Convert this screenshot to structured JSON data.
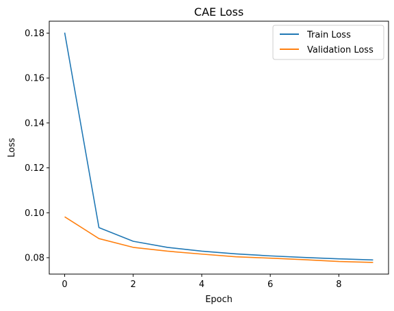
{
  "chart_data": {
    "type": "line",
    "title": "CAE Loss",
    "xlabel": "Epoch",
    "ylabel": "Loss",
    "xlim": [
      -0.45,
      9.45
    ],
    "ylim": [
      0.0727,
      0.1853
    ],
    "xticks": [
      0,
      2,
      4,
      6,
      8
    ],
    "yticks": [
      0.08,
      0.1,
      0.12,
      0.14,
      0.16,
      0.18
    ],
    "xtick_labels": [
      "0",
      "2",
      "4",
      "6",
      "8"
    ],
    "ytick_labels": [
      "0.08",
      "0.10",
      "0.12",
      "0.14",
      "0.16",
      "0.18"
    ],
    "grid": false,
    "legend_position": "top-right",
    "x": [
      0,
      1,
      2,
      3,
      4,
      5,
      6,
      7,
      8,
      9
    ],
    "series": [
      {
        "name": "Train Loss",
        "color": "#1f77b4",
        "values": [
          0.1802,
          0.0934,
          0.0873,
          0.0846,
          0.0829,
          0.0817,
          0.0808,
          0.0801,
          0.0795,
          0.079
        ]
      },
      {
        "name": "Validation Loss",
        "color": "#ff7f0e",
        "values": [
          0.0982,
          0.0885,
          0.0846,
          0.0829,
          0.0816,
          0.0804,
          0.0798,
          0.0791,
          0.0783,
          0.0779
        ]
      }
    ]
  }
}
